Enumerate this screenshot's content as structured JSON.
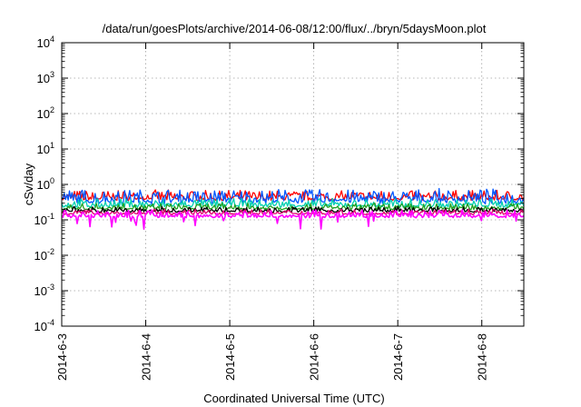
{
  "chart_data": {
    "type": "line",
    "title": "/data/run/goesPlots/archive/2014-06-08/12:00/flux/../bryn/5daysMoon.plot",
    "xlabel": "Coordinated Universal Time (UTC)",
    "ylabel": "cSv/day",
    "x_tick_labels": [
      "2014-6-3",
      "2014-6-4",
      "2014-6-5",
      "2014-6-6",
      "2014-6-7",
      "2014-6-8"
    ],
    "x_range_days": [
      0,
      5.5
    ],
    "y_scale": "log",
    "y_range_exponents": [
      -4,
      4
    ],
    "y_ticks": [
      {
        "base": "10",
        "exp": "-4"
      },
      {
        "base": "10",
        "exp": "-3"
      },
      {
        "base": "10",
        "exp": "-2"
      },
      {
        "base": "10",
        "exp": "-1"
      },
      {
        "base": "10",
        "exp": "0"
      },
      {
        "base": "10",
        "exp": "1"
      },
      {
        "base": "10",
        "exp": "2"
      },
      {
        "base": "10",
        "exp": "3"
      },
      {
        "base": "10",
        "exp": "4"
      }
    ],
    "grid": true,
    "series": [
      {
        "color": "#ff0000",
        "base": 0.38,
        "var": 0.25,
        "dips": false
      },
      {
        "color": "#0055ff",
        "base": 0.32,
        "var": 0.4,
        "dips": false
      },
      {
        "color": "#00d0b0",
        "base": 0.24,
        "var": 0.2,
        "dips": false
      },
      {
        "color": "#20a020",
        "base": 0.2,
        "var": 0.15,
        "dips": false
      },
      {
        "color": "#000000",
        "base": 0.17,
        "var": 0.12,
        "dips": false
      },
      {
        "color": "#e00070",
        "base": 0.145,
        "var": 0.12,
        "dips": false
      },
      {
        "color": "#ff00ff",
        "base": 0.12,
        "var": 0.18,
        "dips": true
      }
    ]
  }
}
